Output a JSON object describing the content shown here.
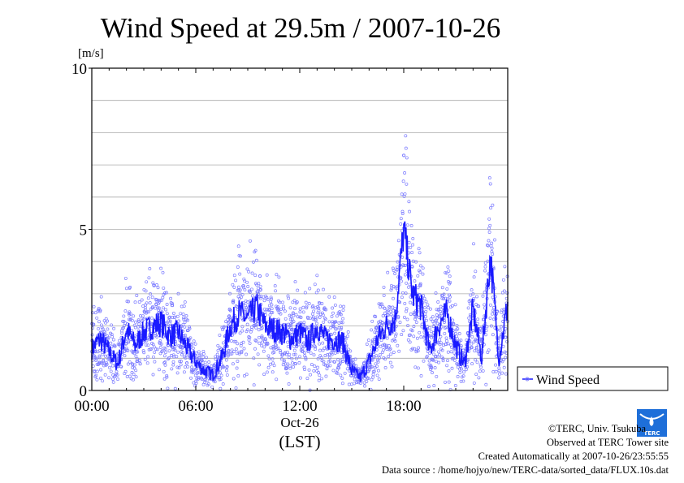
{
  "chart_data": {
    "type": "line",
    "title": "Wind Speed at 29.5m / 2007-10-26",
    "ylabel": "[m/s]",
    "xlabel": "(LST)",
    "date_label": "Oct-26",
    "ylim": [
      0,
      10
    ],
    "xlim_hours": [
      0,
      24
    ],
    "yticks": [
      "0",
      "5",
      "10"
    ],
    "xticks": [
      "00:00",
      "06:00",
      "12:00",
      "18:00"
    ],
    "grid": true,
    "legend": {
      "placement": "right",
      "label": "Wind Speed"
    },
    "series": [
      {
        "name": "Wind Speed",
        "color": "#1a1aff",
        "scatter_color": "#7b7bff",
        "x_hours": [
          0,
          0.5,
          1,
          1.5,
          2,
          2.5,
          3,
          3.5,
          4,
          4.5,
          5,
          5.5,
          6,
          6.5,
          7,
          7.5,
          8,
          8.5,
          9,
          9.5,
          10,
          10.5,
          11,
          11.5,
          12,
          12.5,
          13,
          13.5,
          14,
          14.5,
          15,
          15.5,
          16,
          16.5,
          17,
          17.5,
          18,
          18.5,
          19,
          19.5,
          20,
          20.5,
          21,
          21.5,
          22,
          22.5,
          23,
          23.5,
          24
        ],
        "values": [
          1.3,
          1.6,
          1.2,
          0.8,
          1.9,
          1.4,
          1.8,
          2.0,
          2.1,
          1.7,
          1.8,
          1.3,
          0.9,
          0.6,
          0.5,
          1.0,
          2.0,
          2.4,
          2.2,
          2.6,
          2.0,
          1.9,
          1.8,
          1.6,
          1.8,
          1.5,
          2.0,
          1.6,
          1.6,
          1.5,
          0.6,
          0.4,
          0.9,
          1.6,
          2.0,
          2.2,
          5.0,
          3.0,
          2.6,
          1.2,
          2.0,
          2.4,
          1.4,
          0.8,
          2.5,
          1.0,
          4.2,
          1.0,
          2.7
        ]
      }
    ]
  },
  "credits": {
    "copyright": "©TERC, Univ. Tsukuba",
    "observed": "Observed at TERC Tower site",
    "created": "Created Automatically at 2007-10-26/23:55:55",
    "source": "Data source : /home/hojyo/new/TERC-data/sorted_data/FLUX.10s.dat",
    "logo_text": "TERC"
  }
}
